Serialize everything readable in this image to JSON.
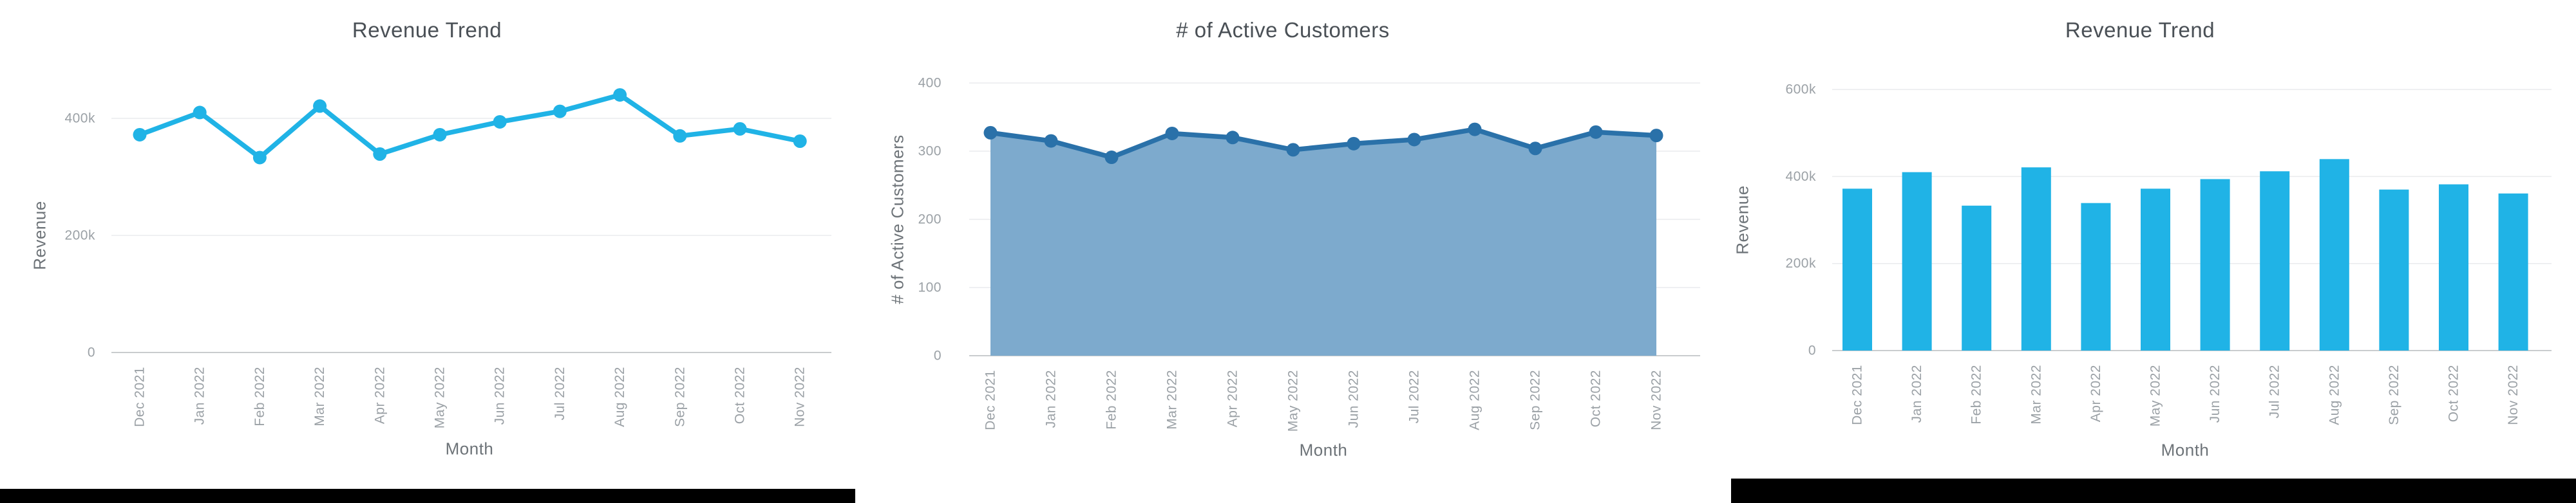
{
  "page": {
    "background": "#ffffff"
  },
  "chart_data": [
    {
      "type": "line",
      "title": "Revenue Trend",
      "xlabel": "Month",
      "ylabel": "Revenue",
      "categories": [
        "Dec 2021",
        "Jan 2022",
        "Feb 2022",
        "Mar 2022",
        "Apr 2022",
        "May 2022",
        "Jun 2022",
        "Jul 2022",
        "Aug 2022",
        "Sep 2022",
        "Oct 2022",
        "Nov 2022"
      ],
      "values": [
        372000,
        410000,
        333000,
        421000,
        339000,
        372000,
        394000,
        412000,
        440000,
        370000,
        382000,
        361000
      ],
      "yticks": [
        {
          "value": 0,
          "label": "0"
        },
        {
          "value": 200000,
          "label": "200k"
        },
        {
          "value": 400000,
          "label": "400k"
        }
      ],
      "ylim": [
        0,
        500000
      ],
      "grid": true,
      "legend": "none",
      "colors": {
        "line": "#20b3e6"
      }
    },
    {
      "type": "area",
      "title": "# of Active Customers",
      "xlabel": "Month",
      "ylabel": "# of Active Customers",
      "categories": [
        "Dec 2021",
        "Jan 2022",
        "Feb 2022",
        "Mar 2022",
        "Apr 2022",
        "May 2022",
        "Jun 2022",
        "Jul 2022",
        "Aug 2022",
        "Sep 2022",
        "Oct 2022",
        "Nov 2022"
      ],
      "values": [
        327,
        315,
        291,
        326,
        320,
        302,
        311,
        317,
        332,
        304,
        328,
        323
      ],
      "yticks": [
        {
          "value": 0,
          "label": "0"
        },
        {
          "value": 100,
          "label": "100"
        },
        {
          "value": 200,
          "label": "200"
        },
        {
          "value": 300,
          "label": "300"
        },
        {
          "value": 400,
          "label": "400"
        }
      ],
      "ylim": [
        0,
        430
      ],
      "grid": true,
      "legend": "none",
      "colors": {
        "line": "#2a71a9",
        "fill": "#7daacd"
      }
    },
    {
      "type": "bar",
      "title": "Revenue Trend",
      "xlabel": "Month",
      "ylabel": "Revenue",
      "categories": [
        "Dec 2021",
        "Jan 2022",
        "Feb 2022",
        "Mar 2022",
        "Apr 2022",
        "May 2022",
        "Jun 2022",
        "Jul 2022",
        "Aug 2022",
        "Sep 2022",
        "Oct 2022",
        "Nov 2022"
      ],
      "values": [
        372000,
        410000,
        333000,
        421000,
        339000,
        372000,
        394000,
        412000,
        440000,
        370000,
        382000,
        361000
      ],
      "yticks": [
        {
          "value": 0,
          "label": "0"
        },
        {
          "value": 200000,
          "label": "200k"
        },
        {
          "value": 400000,
          "label": "400k"
        },
        {
          "value": 600000,
          "label": "600k"
        }
      ],
      "ylim": [
        0,
        660000
      ],
      "grid": true,
      "legend": "none",
      "colors": {
        "bar": "#20b3e6"
      }
    }
  ]
}
